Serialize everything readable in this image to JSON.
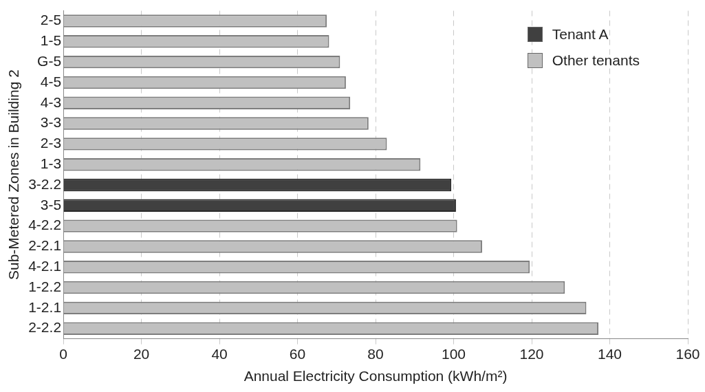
{
  "chart_data": {
    "type": "bar",
    "orientation": "horizontal",
    "xlabel": "Annual Electricity Consumption (kWh/m²)",
    "ylabel": "Sub-Metered Zones in Building 2",
    "categories": [
      "2-5",
      "1-5",
      "G-5",
      "4-5",
      "4-3",
      "3-3",
      "2-3",
      "1-3",
      "3-2.2",
      "3-5",
      "4-2.2",
      "2-2.1",
      "4-2.1",
      "1-2.2",
      "1-2.1",
      "2-2.2"
    ],
    "series": [
      {
        "name": "Tenant A",
        "color": "#404040",
        "values": [
          null,
          null,
          null,
          null,
          null,
          null,
          null,
          null,
          99.4,
          100.6,
          null,
          null,
          null,
          null,
          null,
          null
        ]
      },
      {
        "name": "Other tenants",
        "color": "#c0c0c0",
        "values": [
          67.5,
          68.1,
          70.9,
          72.4,
          73.5,
          78.2,
          82.9,
          91.5,
          null,
          null,
          100.9,
          107.3,
          119.5,
          128.5,
          134,
          137.1
        ]
      }
    ],
    "xlim": [
      0,
      160
    ],
    "xticks": [
      0,
      20,
      40,
      60,
      80,
      100,
      120,
      140,
      160
    ],
    "grid": "x",
    "legend": "top right"
  }
}
